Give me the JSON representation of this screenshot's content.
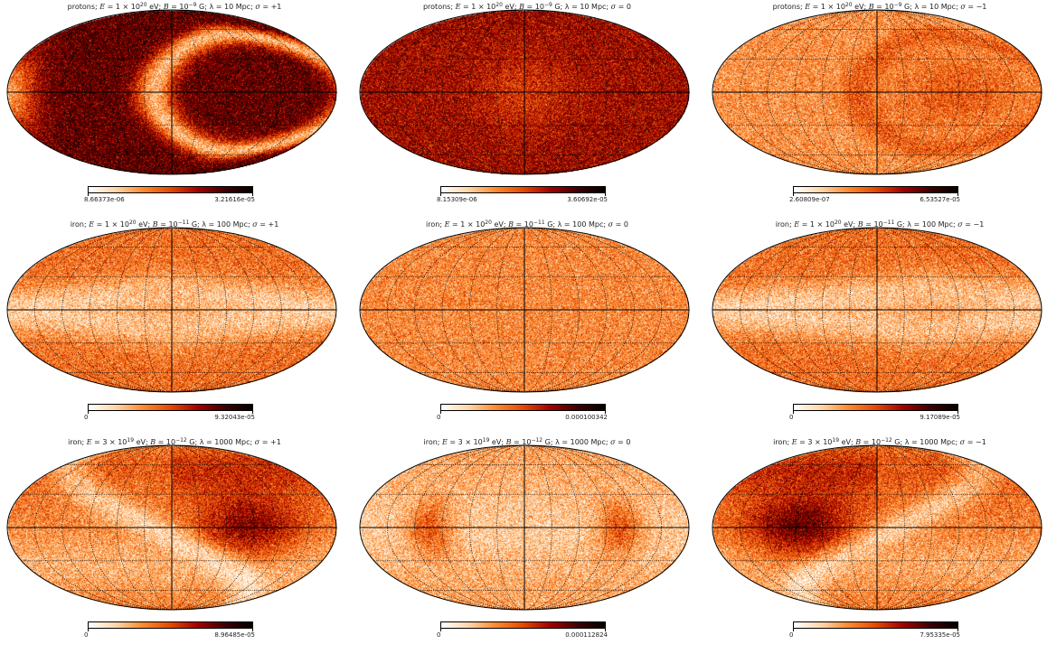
{
  "figure": {
    "colormap": [
      "#ffffff",
      "#fdd6a8",
      "#fd8a2e",
      "#e34a00",
      "#a30000",
      "#400000",
      "#000000"
    ],
    "panels": [
      {
        "title_parts": [
          "protons; ",
          "E",
          " = 1 × 10",
          "20",
          " eV; ",
          "B",
          " = 10",
          "−9",
          " G; λ = 10 Mpc; ",
          "σ",
          " = +1"
        ],
        "cbar_min": "8.66373e-06",
        "cbar_max": "3.21616e-05",
        "pattern": "protons_plus",
        "mean_level": 0.62
      },
      {
        "title_parts": [
          "protons; ",
          "E",
          " = 1 × 10",
          "20",
          " eV; ",
          "B",
          " = 10",
          "−9",
          " G; λ = 10 Mpc; ",
          "σ",
          " = 0"
        ],
        "cbar_min": "8.15309e-06",
        "cbar_max": "3.60692e-05",
        "pattern": "protons_zero",
        "mean_level": 0.55
      },
      {
        "title_parts": [
          "protons; ",
          "E",
          " = 1 × 10",
          "20",
          " eV; ",
          "B",
          " = 10",
          "−9",
          " G; λ = 10 Mpc; ",
          "σ",
          " = −1"
        ],
        "cbar_min": "2.60809e-07",
        "cbar_max": "6.53527e-05",
        "pattern": "protons_minus",
        "mean_level": 0.4
      },
      {
        "title_parts": [
          "iron; ",
          "E",
          " = 1 × 10",
          "20",
          " eV; ",
          "B",
          " = 10",
          "−11",
          " G; λ = 100 Mpc; ",
          "σ",
          " = +1"
        ],
        "cbar_min": "0",
        "cbar_max": "9.32043e-05",
        "pattern": "iron100_plus",
        "mean_level": 0.36
      },
      {
        "title_parts": [
          "iron; ",
          "E",
          " = 1 × 10",
          "20",
          " eV; ",
          "B",
          " = 10",
          "−11",
          " G; λ = 100 Mpc; ",
          "σ",
          " = 0"
        ],
        "cbar_min": "0",
        "cbar_max": "0.000100342",
        "pattern": "iron100_zero",
        "mean_level": 0.32
      },
      {
        "title_parts": [
          "iron; ",
          "E",
          " = 1 × 10",
          "20",
          " eV; ",
          "B",
          " = 10",
          "−11",
          " G; λ = 100 Mpc; ",
          "σ",
          " = −1"
        ],
        "cbar_min": "0",
        "cbar_max": "9.17089e-05",
        "pattern": "iron100_minus",
        "mean_level": 0.36
      },
      {
        "title_parts": [
          "iron; ",
          "E",
          " = 3 × 10",
          "19",
          " eV; ",
          "B",
          " = 10",
          "−12",
          " G; λ = 1000 Mpc; ",
          "σ",
          " = +1"
        ],
        "cbar_min": "0",
        "cbar_max": "8.96485e-05",
        "pattern": "iron1000_plus",
        "mean_level": 0.36
      },
      {
        "title_parts": [
          "iron; ",
          "E",
          " = 3 × 10",
          "19",
          " eV; ",
          "B",
          " = 10",
          "−12",
          " G; λ = 1000 Mpc; ",
          "σ",
          " = 0"
        ],
        "cbar_min": "0",
        "cbar_max": "0.000112824",
        "pattern": "iron1000_zero",
        "mean_level": 0.3
      },
      {
        "title_parts": [
          "iron; ",
          "E",
          " = 3 × 10",
          "19",
          " eV; ",
          "B",
          " = 10",
          "−12",
          " G; λ = 1000 Mpc; ",
          "σ",
          " = −1"
        ],
        "cbar_min": "0",
        "cbar_max": "7.95335e-05",
        "pattern": "iron1000_minus",
        "mean_level": 0.38
      }
    ]
  },
  "chart_data": [
    {
      "type": "heatmap",
      "projection": "mollweide",
      "title": "protons; E = 1 × 10^20 eV; B = 10^−9 G; λ = 10 Mpc; σ = +1",
      "colorbar_range": [
        8.66373e-06,
        3.21616e-05
      ],
      "graticule": true
    },
    {
      "type": "heatmap",
      "projection": "mollweide",
      "title": "protons; E = 1 × 10^20 eV; B = 10^−9 G; λ = 10 Mpc; σ = 0",
      "colorbar_range": [
        8.15309e-06,
        3.60692e-05
      ],
      "graticule": true
    },
    {
      "type": "heatmap",
      "projection": "mollweide",
      "title": "protons; E = 1 × 10^20 eV; B = 10^−9 G; λ = 10 Mpc; σ = −1",
      "colorbar_range": [
        2.60809e-07,
        6.53527e-05
      ],
      "graticule": true
    },
    {
      "type": "heatmap",
      "projection": "mollweide",
      "title": "iron; E = 1 × 10^20 eV; B = 10^−11 G; λ = 100 Mpc; σ = +1",
      "colorbar_range": [
        0,
        9.32043e-05
      ],
      "graticule": true
    },
    {
      "type": "heatmap",
      "projection": "mollweide",
      "title": "iron; E = 1 × 10^20 eV; B = 10^−11 G; λ = 100 Mpc; σ = 0",
      "colorbar_range": [
        0,
        0.000100342
      ],
      "graticule": true
    },
    {
      "type": "heatmap",
      "projection": "mollweide",
      "title": "iron; E = 1 × 10^20 eV; B = 10^−11 G; λ = 100 Mpc; σ = −1",
      "colorbar_range": [
        0,
        9.17089e-05
      ],
      "graticule": true
    },
    {
      "type": "heatmap",
      "projection": "mollweide",
      "title": "iron; E = 3 × 10^19 eV; B = 10^−12 G; λ = 1000 Mpc; σ = +1",
      "colorbar_range": [
        0,
        8.96485e-05
      ],
      "graticule": true
    },
    {
      "type": "heatmap",
      "projection": "mollweide",
      "title": "iron; E = 3 × 10^19 eV; B = 10^−12 G; λ = 1000 Mpc; σ = 0",
      "colorbar_range": [
        0,
        0.000112824
      ],
      "graticule": true
    },
    {
      "type": "heatmap",
      "projection": "mollweide",
      "title": "iron; E = 3 × 10^19 eV; B = 10^−12 G; λ = 1000 Mpc; σ = −1",
      "colorbar_range": [
        0,
        7.95335e-05
      ],
      "graticule": true
    }
  ]
}
